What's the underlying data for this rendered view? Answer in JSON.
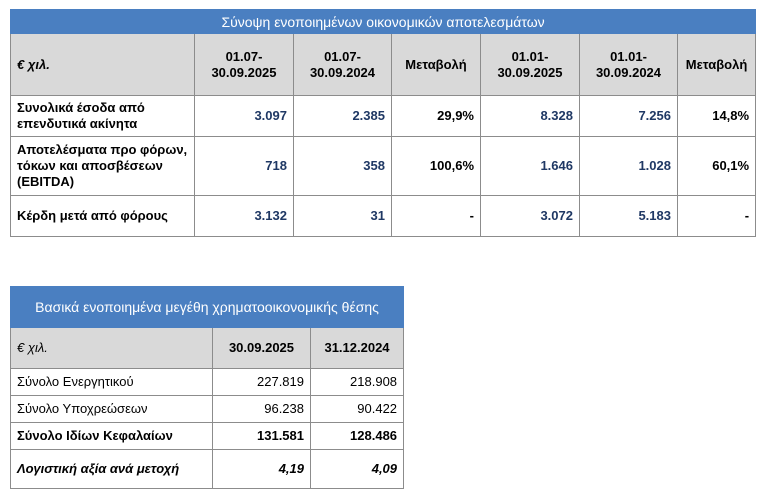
{
  "summary_table": {
    "title": "Σύνοψη ενοποιημένων οικονομικών αποτελεσμάτων",
    "headers": [
      "€ χιλ.",
      "01.07-\n30.09.2025",
      "01.07-\n30.09.2024",
      "Μεταβολή",
      "01.01-\n30.09.2025",
      "01.01-\n30.09.2024",
      "Μεταβολή"
    ],
    "rows": [
      {
        "label": "Συνολικά έσοδα από επενδυτικά ακίνητα",
        "values": [
          "3.097",
          "2.385",
          "29,9%",
          "8.328",
          "7.256",
          "14,8%"
        ]
      },
      {
        "label": "Αποτελέσματα προ φόρων, τόκων και αποσβέσεων (EBITDA)",
        "values": [
          "718",
          "358",
          "100,6%",
          "1.646",
          "1.028",
          "60,1%"
        ]
      },
      {
        "label": "Κέρδη μετά από φόρους",
        "values": [
          "3.132",
          "31",
          "-",
          "3.072",
          "5.183",
          "-"
        ]
      }
    ]
  },
  "balance_table": {
    "title": "Βασικά ενοποιημένα μεγέθη χρηματοοικονομικής θέσης",
    "headers": [
      "€ χιλ.",
      "30.09.2025",
      "31.12.2024"
    ],
    "rows": [
      {
        "label": "Σύνολο Ενεργητικού",
        "values": [
          "227.819",
          "218.908"
        ]
      },
      {
        "label": "Σύνολο Υποχρεώσεων",
        "values": [
          "96.238",
          "90.422"
        ]
      },
      {
        "label": "Σύνολο Ιδίων Κεφαλαίων",
        "values": [
          "131.581",
          "128.486"
        ]
      },
      {
        "label": "Λογιστική αξία ανά μετοχή",
        "values": [
          "4,19",
          "4,09"
        ]
      }
    ]
  },
  "colors": {
    "title_bar": "#4a7fc1",
    "header_bg": "#d9d9d9",
    "value_navy": "#1f3864"
  }
}
